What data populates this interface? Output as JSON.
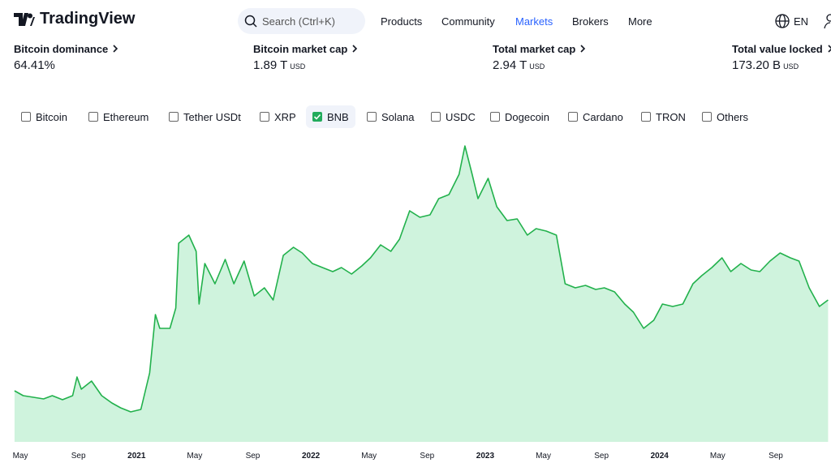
{
  "header": {
    "logo": "TradingView",
    "search": "Search (Ctrl+K)",
    "nav": [
      "Products",
      "Community",
      "Markets",
      "Brokers",
      "More"
    ],
    "active_index": 2,
    "language": "EN"
  },
  "stats": [
    {
      "label": "Bitcoin dominance",
      "value": "64.41%"
    },
    {
      "label": "Bitcoin market cap",
      "value": "1.89 T",
      "unit": "USD"
    },
    {
      "label": "Total market cap",
      "value": "2.94 T",
      "unit": "USD"
    },
    {
      "label": "Total value locked",
      "value": "173.20 B",
      "unit": "USD"
    }
  ],
  "filters": [
    {
      "name": "Bitcoin",
      "checked": false
    },
    {
      "name": "Ethereum",
      "checked": false
    },
    {
      "name": "Tether USDt",
      "checked": false
    },
    {
      "name": "XRP",
      "checked": false
    },
    {
      "name": "BNB",
      "checked": true
    },
    {
      "name": "Solana",
      "checked": false
    },
    {
      "name": "USDC",
      "checked": false
    },
    {
      "name": "Dogecoin",
      "checked": false
    },
    {
      "name": "Cardano",
      "checked": false
    },
    {
      "name": "TRON",
      "checked": false
    },
    {
      "name": "Others",
      "checked": false
    }
  ],
  "chart_data": {
    "type": "area",
    "color": "#22b14c",
    "fill": "#cff3dd",
    "x": [
      -0.4,
      0.2,
      0.9,
      1.6,
      2.2,
      2.9,
      3.6,
      3.9,
      4.2,
      4.9,
      5.6,
      6.3,
      6.9,
      7.6,
      8.3,
      8.9,
      9.3,
      9.6,
      10.3,
      10.7,
      10.9,
      11.6,
      12.1,
      12.3,
      12.7,
      13.4,
      14.1,
      14.7,
      15.4,
      16.1,
      16.8,
      17.4,
      18.1,
      18.8,
      19.4,
      20.1,
      20.8,
      21.5,
      22.1,
      22.8,
      23.5,
      24.1,
      24.8,
      25.5,
      26.1,
      26.8,
      27.5,
      28.2,
      28.8,
      29.5,
      30.2,
      30.6,
      31.1,
      31.5,
      32.2,
      32.8,
      33.5,
      34.2,
      34.9,
      35.5,
      36.2,
      36.9,
      37.5,
      38.2,
      38.9,
      39.6,
      40.2,
      40.9,
      41.6,
      42.2,
      42.9,
      43.6,
      44.2,
      44.9,
      45.6,
      46.3,
      46.9,
      47.6,
      48.3,
      48.9,
      49.6,
      50.3,
      50.9,
      51.6,
      52.3,
      53,
      53.6,
      54.3,
      55,
      55.6
    ],
    "values": [
      63,
      57,
      55,
      53,
      57,
      52,
      57,
      80,
      65,
      75,
      57,
      48,
      42,
      37,
      40,
      85,
      157,
      140,
      140,
      165,
      245,
      255,
      235,
      170,
      220,
      195,
      225,
      195,
      223,
      180,
      190,
      175,
      230,
      240,
      233,
      220,
      215,
      210,
      215,
      207,
      217,
      227,
      243,
      235,
      250,
      285,
      277,
      280,
      300,
      305,
      330,
      365,
      330,
      300,
      325,
      290,
      273,
      275,
      255,
      263,
      260,
      255,
      195,
      190,
      193,
      188,
      190,
      185,
      170,
      160,
      140,
      150,
      170,
      167,
      170,
      195,
      205,
      215,
      227,
      210,
      220,
      212,
      210,
      223,
      233,
      227,
      223,
      190,
      167,
      175
    ],
    "xlim": [
      -0.45,
      55.8
    ],
    "ylim": [
      0,
      375
    ],
    "xticks": [
      {
        "value": 0,
        "label": "May"
      },
      {
        "value": 4,
        "label": "Sep"
      },
      {
        "value": 8,
        "label": "2021"
      },
      {
        "value": 12,
        "label": "May"
      },
      {
        "value": 16,
        "label": "Sep"
      },
      {
        "value": 20,
        "label": "2022"
      },
      {
        "value": 24,
        "label": "May"
      },
      {
        "value": 28,
        "label": "Sep"
      },
      {
        "value": 32,
        "label": "2023"
      },
      {
        "value": 36,
        "label": "May"
      },
      {
        "value": 40,
        "label": "Sep"
      },
      {
        "value": 44,
        "label": "2024"
      },
      {
        "value": 48,
        "label": "May"
      },
      {
        "value": 52,
        "label": "Sep"
      }
    ]
  }
}
